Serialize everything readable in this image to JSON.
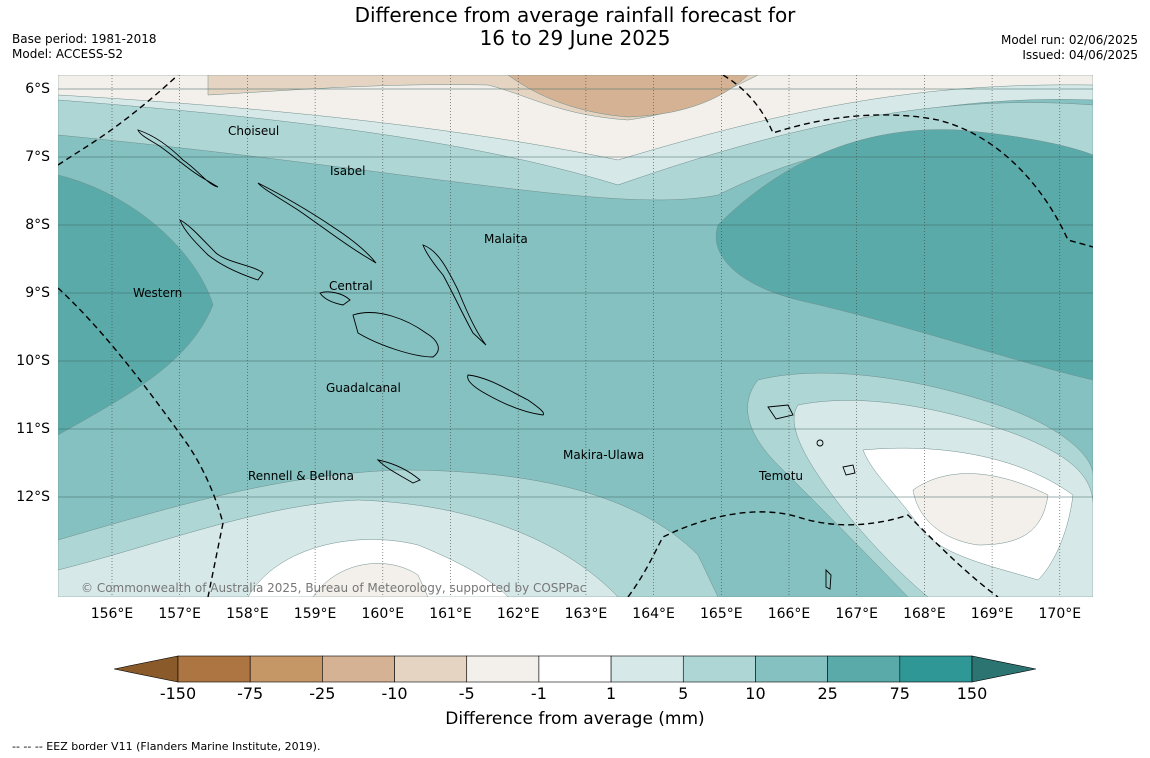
{
  "title": {
    "line1": "Difference from average rainfall forecast for",
    "line2": "16 to 29 June 2025"
  },
  "meta_left": {
    "base_period": "Base period: 1981-2018",
    "model": "Model: ACCESS-S2"
  },
  "meta_right": {
    "model_run": "Model run: 02/06/2025",
    "issued": "Issued: 04/06/2025"
  },
  "map": {
    "lon_labels": [
      "156°E",
      "157°E",
      "158°E",
      "159°E",
      "160°E",
      "161°E",
      "162°E",
      "163°E",
      "164°E",
      "165°E",
      "166°E",
      "167°E",
      "168°E",
      "169°E",
      "170°E"
    ],
    "lat_labels": [
      "6°S",
      "7°S",
      "8°S",
      "9°S",
      "10°S",
      "11°S",
      "12°S"
    ],
    "regions": [
      "Choiseul",
      "Isabel",
      "Malaita",
      "Central",
      "Western",
      "Guadalcanal",
      "Makira-Ulawa",
      "Rennell & Bellona",
      "Temotu"
    ],
    "copyright": "© Commonwealth of Australia 2025, Bureau of Meteorology, supported by COSPPac"
  },
  "colorbar": {
    "ticks": [
      "-150",
      "-75",
      "-25",
      "-10",
      "-5",
      "-1",
      "1",
      "5",
      "10",
      "25",
      "75",
      "150"
    ],
    "colors": [
      "#8b5a2b",
      "#ad7541",
      "#c59767",
      "#d5b293",
      "#e5d4c2",
      "#f3efea",
      "#ffffff",
      "#d6e9e8",
      "#aed6d5",
      "#84c1c0",
      "#5aaaa9",
      "#2f9896",
      "#2c7472"
    ],
    "title": "Difference from average (mm)"
  },
  "footnote": "--  --  -- EEZ border V11 (Flanders Marine Institute, 2019)."
}
